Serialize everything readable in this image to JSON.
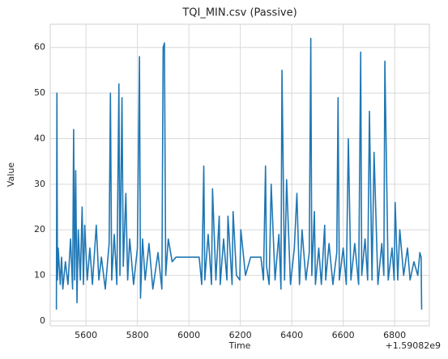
{
  "chart_data": {
    "type": "line",
    "title": "TQI_MIN.csv (Passive)",
    "x_label": "Time",
    "y_label": "Value",
    "x_offset_label": "+1.59082e9",
    "xlim": [
      5461,
      6935
    ],
    "ylim": [
      -1.07,
      65.1
    ],
    "xticks": [
      5600,
      5800,
      6000,
      6200,
      6400,
      6600,
      6800
    ],
    "yticks": [
      0,
      10,
      20,
      30,
      40,
      50,
      60
    ],
    "grid": true,
    "x": [
      5485,
      5487,
      5489,
      5492,
      5500,
      5505,
      5510,
      5520,
      5530,
      5540,
      5548,
      5552,
      5556,
      5560,
      5565,
      5570,
      5578,
      5585,
      5590,
      5595,
      5605,
      5615,
      5625,
      5640,
      5650,
      5660,
      5675,
      5690,
      5695,
      5700,
      5710,
      5720,
      5728,
      5732,
      5740,
      5745,
      5755,
      5762,
      5770,
      5785,
      5800,
      5808,
      5812,
      5820,
      5830,
      5845,
      5860,
      5880,
      5895,
      5900,
      5905,
      5910,
      5920,
      5935,
      5950,
      5980,
      6010,
      6040,
      6050,
      6058,
      6062,
      6075,
      6088,
      6092,
      6105,
      6118,
      6122,
      6135,
      6148,
      6152,
      6168,
      6172,
      6185,
      6198,
      6202,
      6220,
      6240,
      6260,
      6280,
      6290,
      6298,
      6302,
      6312,
      6320,
      6335,
      6350,
      6358,
      6362,
      6372,
      6380,
      6395,
      6410,
      6420,
      6430,
      6440,
      6455,
      6468,
      6474,
      6478,
      6488,
      6492,
      6505,
      6515,
      6528,
      6532,
      6545,
      6560,
      6575,
      6580,
      6585,
      6600,
      6612,
      6620,
      6630,
      6645,
      6660,
      6668,
      6672,
      6685,
      6695,
      6702,
      6712,
      6720,
      6735,
      6750,
      6758,
      6762,
      6775,
      6790,
      6798,
      6802,
      6812,
      6820,
      6835,
      6850,
      6860,
      6875,
      6890,
      6898,
      6903,
      6905
    ],
    "series": [
      {
        "name": "Value",
        "color": "#1f77b4",
        "values": [
          2.5,
          50,
          9,
          16,
          8,
          14,
          7,
          13,
          8,
          18,
          7,
          42,
          9,
          33,
          4,
          20,
          9,
          25,
          8,
          21,
          9,
          16,
          8,
          21,
          9,
          14,
          7,
          17,
          50,
          9,
          19,
          8,
          52,
          10,
          49,
          12,
          28,
          9,
          18,
          8,
          16,
          58,
          5,
          18,
          9,
          17,
          7,
          15,
          7,
          60,
          61,
          10,
          18,
          13,
          14,
          14,
          14,
          14,
          8,
          34,
          9,
          19,
          8,
          29,
          9,
          23,
          8,
          18,
          9,
          23,
          8,
          24,
          10,
          9,
          20,
          10,
          14,
          14,
          14,
          9,
          34,
          12,
          8,
          30,
          9,
          19,
          7,
          55,
          9,
          31,
          8,
          16,
          28,
          8,
          20,
          9,
          15,
          62,
          10,
          24,
          8,
          16,
          8,
          21,
          9,
          17,
          8,
          15,
          49,
          9,
          16,
          8,
          40,
          9,
          17,
          8,
          59,
          10,
          18,
          9,
          46,
          9,
          37,
          8,
          17,
          10,
          57,
          9,
          16,
          9,
          26,
          9,
          20,
          10,
          16,
          9,
          13,
          10,
          15,
          14,
          2.5
        ]
      }
    ]
  }
}
